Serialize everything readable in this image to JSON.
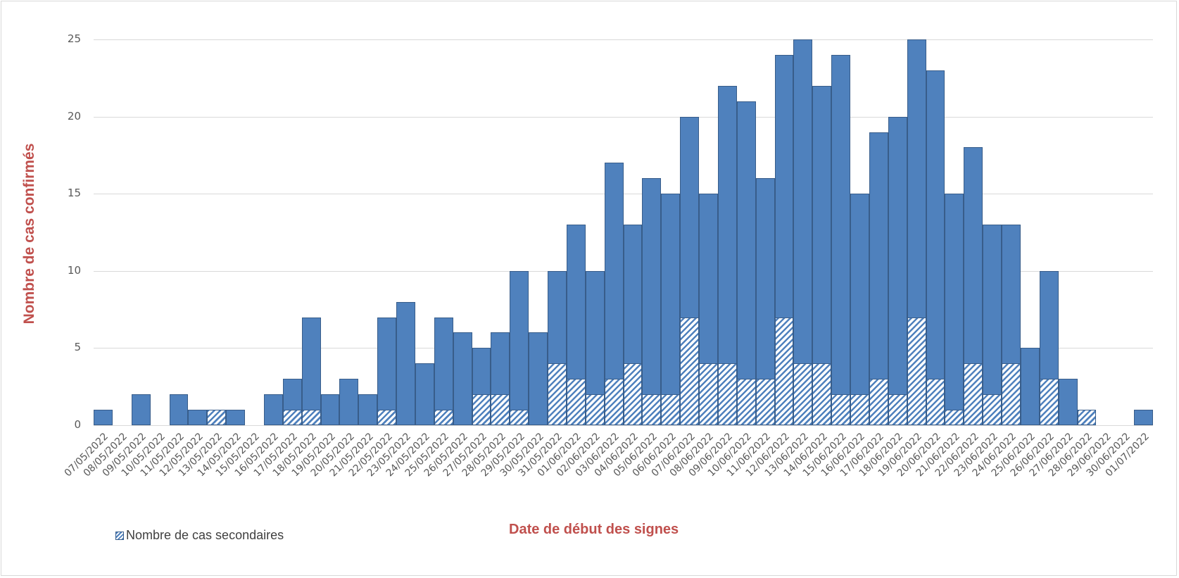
{
  "chart_data": {
    "type": "bar",
    "title": "",
    "xlabel": "Date de début des signes",
    "ylabel": "Nombre de cas confirmés",
    "ylim": [
      0,
      25
    ],
    "yticks": [
      0,
      5,
      10,
      15,
      20,
      25
    ],
    "grid": true,
    "legend_position": "bottom-left",
    "legend": [
      "Nombre de cas secondaires"
    ],
    "colors": {
      "bar_fill": "#4f81bd",
      "bar_border": "#385d8a",
      "title_color": "#c0504d",
      "grid": "#d9d9d9"
    },
    "categories": [
      "07/05/2022",
      "08/05/2022",
      "09/05/2022",
      "10/05/2022",
      "11/05/2022",
      "12/05/2022",
      "13/05/2022",
      "14/05/2022",
      "15/05/2022",
      "16/05/2022",
      "17/05/2022",
      "18/05/2022",
      "19/05/2022",
      "20/05/2022",
      "21/05/2022",
      "22/05/2022",
      "23/05/2022",
      "24/05/2022",
      "25/05/2022",
      "26/05/2022",
      "27/05/2022",
      "28/05/2022",
      "29/05/2022",
      "30/05/2022",
      "31/05/2022",
      "01/06/2022",
      "02/06/2022",
      "03/06/2022",
      "04/06/2022",
      "05/06/2022",
      "06/06/2022",
      "07/06/2022",
      "08/06/2022",
      "09/06/2022",
      "10/06/2022",
      "11/06/2022",
      "12/06/2022",
      "13/06/2022",
      "14/06/2022",
      "15/06/2022",
      "16/06/2022",
      "17/06/2022",
      "18/06/2022",
      "19/06/2022",
      "20/06/2022",
      "21/06/2022",
      "22/06/2022",
      "23/06/2022",
      "24/06/2022",
      "25/06/2022",
      "26/06/2022",
      "27/06/2022",
      "28/06/2022",
      "29/06/2022",
      "30/06/2022",
      "01/07/2022"
    ],
    "series": [
      {
        "name": "Nombre de cas confirmés",
        "values": [
          1,
          0,
          2,
          0,
          2,
          1,
          1,
          1,
          0,
          2,
          3,
          7,
          2,
          3,
          2,
          7,
          8,
          4,
          7,
          6,
          5,
          6,
          10,
          6,
          10,
          13,
          10,
          17,
          13,
          16,
          15,
          20,
          15,
          22,
          21,
          16,
          24,
          25,
          22,
          24,
          15,
          19,
          20,
          25,
          23,
          15,
          18,
          13,
          13,
          5,
          10,
          3,
          1,
          0,
          0,
          1
        ]
      },
      {
        "name": "Nombre de cas secondaires",
        "values": [
          0,
          0,
          0,
          0,
          0,
          0,
          1,
          0,
          0,
          0,
          1,
          1,
          0,
          0,
          0,
          1,
          0,
          0,
          1,
          0,
          2,
          2,
          1,
          0,
          4,
          3,
          2,
          3,
          4,
          2,
          2,
          7,
          4,
          4,
          3,
          3,
          7,
          4,
          4,
          2,
          2,
          3,
          2,
          7,
          3,
          1,
          4,
          2,
          4,
          0,
          3,
          0,
          1,
          0,
          0,
          0
        ]
      }
    ]
  }
}
